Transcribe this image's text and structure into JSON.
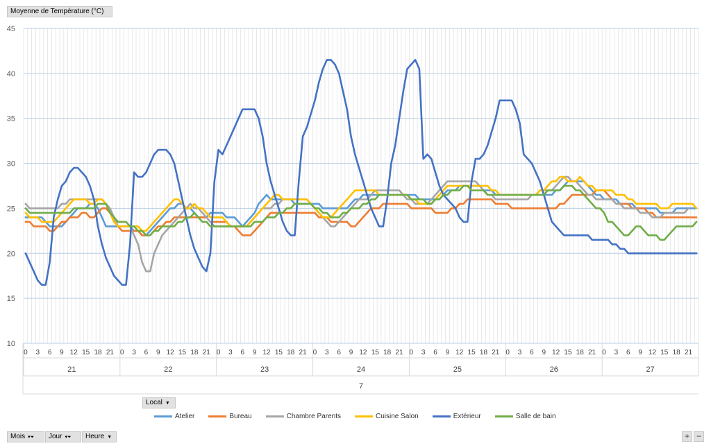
{
  "value_field_label": "Moyenne de Température (°C)",
  "legend_field_label": "Local",
  "axis_fields": [
    {
      "label": "Mois",
      "has_filter": true
    },
    {
      "label": "Jour",
      "has_filter": true
    },
    {
      "label": "Heure",
      "has_filter": false
    }
  ],
  "zoom": {
    "plus": "+",
    "minus": "−"
  },
  "icons": {
    "dropdown": "chevron-down-icon",
    "filter": "funnel-icon"
  },
  "chart_data": {
    "type": "line",
    "title": "",
    "xlabel": "",
    "ylabel": "",
    "ylim": [
      10,
      45
    ],
    "yticks": [
      10,
      15,
      20,
      25,
      30,
      35,
      40,
      45
    ],
    "grid": true,
    "legend_position": "bottom",
    "month": "7",
    "days": [
      "21",
      "22",
      "23",
      "24",
      "25",
      "26",
      "27"
    ],
    "hour_tick_labels": [
      "0",
      "3",
      "6",
      "9",
      "12",
      "15",
      "18",
      "21"
    ],
    "hours_per_day": 24,
    "series": [
      {
        "name": "Atelier",
        "color": "#5b9bd5",
        "values": [
          24,
          24,
          24,
          24,
          24,
          23.5,
          23,
          23,
          23,
          23,
          23.5,
          24,
          24.5,
          25,
          25,
          25,
          25.5,
          25.5,
          25,
          24,
          23,
          23,
          23,
          23,
          23,
          23,
          23,
          22.5,
          22.5,
          22,
          22,
          22.5,
          23,
          23.5,
          24,
          24.5,
          25,
          25,
          25.5,
          25.5,
          25,
          25,
          24.5,
          24,
          24,
          24,
          24.5,
          24.5,
          24.5,
          24.5,
          24,
          24,
          24,
          23.5,
          23,
          23.5,
          24,
          24.5,
          25.5,
          26,
          26.5,
          26,
          26,
          26,
          26,
          26,
          26,
          25.5,
          25.5,
          25.5,
          25.5,
          25.5,
          25.5,
          25.5,
          25,
          25,
          25,
          25,
          25,
          25,
          25,
          25.5,
          26,
          26,
          26.5,
          26.5,
          26.5,
          26.5,
          26.5,
          26.5,
          26.5,
          26.5,
          26.5,
          26.5,
          26.5,
          26.5,
          26.5,
          26.5,
          26,
          26,
          26,
          26,
          26,
          26,
          26.5,
          27,
          27,
          27,
          27.5,
          27.5,
          27.5,
          27.5,
          27.5,
          27.5,
          27,
          27,
          27,
          26.5,
          26.5,
          26.5,
          26.5,
          26.5,
          26.5,
          26.5,
          26.5,
          26.5,
          26.5,
          26.5,
          26.5,
          26.5,
          26.5,
          26.5,
          27,
          27,
          27.5,
          28,
          28,
          28,
          28,
          28,
          27.5,
          27,
          26.5,
          26.5,
          26,
          26,
          26,
          26,
          25.5,
          25.5,
          25.5,
          25.5,
          25,
          25,
          25,
          25,
          25,
          25,
          24.5,
          24.5,
          24.5,
          24.5,
          25,
          25,
          25,
          25,
          25,
          25
        ]
      },
      {
        "name": "Bureau",
        "color": "#ed7d31",
        "values": [
          23.5,
          23.5,
          23,
          23,
          23,
          23,
          22.5,
          22.5,
          23,
          23.5,
          23.5,
          24,
          24,
          24,
          24.5,
          24.5,
          24,
          24,
          24.5,
          25,
          25,
          24.5,
          24,
          23,
          22.5,
          22.5,
          22.5,
          22.5,
          22.5,
          22,
          22,
          22,
          22.5,
          23,
          23,
          23.5,
          23.5,
          24,
          24,
          24,
          24,
          24,
          24,
          24,
          24,
          24,
          23.5,
          23.5,
          23.5,
          23.5,
          23.5,
          23,
          23,
          22.5,
          22,
          22,
          22,
          22.5,
          23,
          23.5,
          24,
          24.5,
          24.5,
          24.5,
          24.5,
          24.5,
          24.5,
          24.5,
          24.5,
          24.5,
          24.5,
          24.5,
          24.5,
          24,
          24,
          24,
          23.5,
          23.5,
          23.5,
          23.5,
          23.5,
          23,
          23,
          23.5,
          24,
          24.5,
          25,
          25,
          25,
          25.5,
          25.5,
          25.5,
          25.5,
          25.5,
          25.5,
          25.5,
          25,
          25,
          25,
          25,
          25,
          25,
          24.5,
          24.5,
          24.5,
          24.5,
          25,
          25,
          25.5,
          25.5,
          26,
          26,
          26,
          26,
          26,
          26,
          26,
          25.5,
          25.5,
          25.5,
          25.5,
          25,
          25,
          25,
          25,
          25,
          25,
          25,
          25,
          25,
          25,
          25,
          25,
          25.5,
          25.5,
          26,
          26.5,
          26.5,
          26.5,
          26.5,
          26.5,
          26.5,
          27,
          27,
          27,
          26.5,
          26,
          25.5,
          25.5,
          25.5,
          25.5,
          25,
          25,
          25,
          25,
          24.5,
          24.5,
          24,
          24,
          24,
          24,
          24,
          24,
          24,
          24,
          24,
          24,
          24
        ]
      },
      {
        "name": "Chambre Parents",
        "color": "#a5a5a5",
        "values": [
          25.5,
          25,
          25,
          25,
          25,
          25,
          25,
          25,
          25,
          25.5,
          25.5,
          26,
          26,
          26,
          26,
          26,
          26,
          26,
          26,
          26,
          25.5,
          25,
          24,
          23,
          23,
          23,
          23,
          22,
          21,
          19,
          18,
          18,
          20,
          21,
          22,
          22.5,
          23,
          23.5,
          24,
          24.5,
          25,
          25.5,
          25,
          25,
          24.5,
          24,
          23.5,
          23,
          23,
          23,
          23,
          23,
          23,
          23,
          23,
          23,
          23.5,
          24,
          24.5,
          25,
          25,
          25,
          25.5,
          25.5,
          26,
          26,
          26,
          26,
          26,
          26,
          26,
          25.5,
          25,
          24.5,
          24,
          23.5,
          23,
          23,
          23.5,
          24,
          24.5,
          25,
          25.5,
          26,
          26,
          26,
          26.5,
          27,
          27,
          27,
          27,
          27,
          27,
          27,
          26.5,
          26,
          26,
          25.5,
          25.5,
          25.5,
          25.5,
          26,
          26.5,
          27,
          27.5,
          28,
          28,
          28,
          28,
          28,
          28,
          28,
          28,
          27.5,
          27,
          26.5,
          26.5,
          26,
          26,
          26,
          26,
          26,
          26,
          26,
          26,
          26,
          26.5,
          26.5,
          27,
          27,
          27,
          27,
          27.5,
          28,
          28.5,
          28.5,
          28,
          28,
          27.5,
          27,
          26.5,
          26.5,
          26,
          26,
          26,
          26,
          26,
          25.5,
          25.5,
          25,
          25,
          25,
          25,
          24.5,
          24.5,
          24.5,
          24,
          24,
          24,
          24.5,
          24.5,
          24.5,
          24.5,
          24.5,
          24.5,
          25
        ]
      },
      {
        "name": "Cuisine Salon",
        "color": "#ffc000",
        "values": [
          24.5,
          24,
          24,
          24,
          23.5,
          23.5,
          23.5,
          23.5,
          24,
          24.5,
          25,
          25.5,
          26,
          26,
          26,
          26,
          25.5,
          25.5,
          26,
          26,
          25.5,
          24.5,
          23.5,
          23,
          23,
          23,
          23,
          23,
          23,
          22.5,
          22.5,
          23,
          23.5,
          24,
          24.5,
          25,
          25.5,
          26,
          26,
          25.5,
          25,
          25,
          25.5,
          25,
          25,
          24.5,
          24,
          24,
          24,
          24,
          23.5,
          23,
          23,
          23,
          23,
          23,
          23.5,
          24,
          24.5,
          25,
          25.5,
          26,
          26.5,
          26.5,
          26,
          26,
          26,
          26,
          26,
          26,
          26,
          25.5,
          25,
          24.5,
          24,
          24,
          24,
          24.5,
          25,
          25.5,
          26,
          26.5,
          27,
          27,
          27,
          27,
          27,
          27,
          26.5,
          26.5,
          26.5,
          26.5,
          26.5,
          26.5,
          26.5,
          26.5,
          26,
          26,
          25.5,
          25.5,
          25.5,
          25.5,
          26,
          26.5,
          27,
          27.5,
          27.5,
          27.5,
          27.5,
          27.5,
          27.5,
          27.5,
          27.5,
          27.5,
          27.5,
          27.5,
          27,
          27,
          26.5,
          26.5,
          26.5,
          26.5,
          26.5,
          26.5,
          26.5,
          26.5,
          26.5,
          26.5,
          27,
          27,
          27.5,
          28,
          28,
          28.5,
          28.5,
          28,
          28,
          28,
          28.5,
          28,
          27.5,
          27.5,
          27,
          27,
          27,
          27,
          27,
          26.5,
          26.5,
          26.5,
          26,
          26,
          25.5,
          25.5,
          25.5,
          25.5,
          25.5,
          25.5,
          25,
          25,
          25,
          25.5,
          25.5,
          25.5,
          25.5,
          25.5,
          25.5,
          25
        ]
      },
      {
        "name": "Extérieur",
        "color": "#4472c4",
        "values": [
          20,
          19,
          18,
          17,
          16.5,
          16.5,
          19,
          24,
          26,
          27.5,
          28,
          29,
          29.5,
          29.5,
          29,
          28.5,
          27.5,
          26,
          23,
          21,
          19.5,
          18.5,
          17.5,
          17,
          16.5,
          16.5,
          21,
          29,
          28.5,
          28.5,
          29,
          30,
          31,
          31.5,
          31.5,
          31.5,
          31,
          30,
          28,
          26,
          24,
          22,
          20.5,
          19.5,
          18.5,
          18,
          20,
          28,
          31.5,
          31,
          32,
          33,
          34,
          35,
          36,
          36,
          36,
          36,
          35,
          33,
          30,
          28,
          26.5,
          25,
          23.5,
          22.5,
          22,
          22,
          28,
          33,
          34,
          35.5,
          37,
          39,
          40.5,
          41.5,
          41.5,
          41,
          40,
          38,
          36,
          33,
          31,
          29.5,
          28,
          26.5,
          25,
          24,
          23,
          23,
          26,
          30,
          32,
          35,
          38,
          40.5,
          41,
          41.5,
          40.5,
          30.5,
          31,
          30.5,
          29,
          27.5,
          26.5,
          26,
          25.5,
          25,
          24,
          23.5,
          23.5,
          28,
          30.5,
          30.5,
          31,
          32,
          33.5,
          35,
          37,
          37,
          37,
          37,
          36,
          34.5,
          31,
          30.5,
          30,
          29,
          28,
          26.5,
          25,
          23.5,
          23,
          22.5,
          22,
          22,
          22,
          22,
          22,
          22,
          22,
          21.5,
          21.5,
          21.5,
          21.5,
          21.5,
          21,
          21,
          20.5,
          20.5,
          20,
          20,
          20,
          20,
          20,
          20,
          20,
          20,
          20,
          20,
          20,
          20,
          20,
          20,
          20,
          20,
          20,
          20
        ]
      },
      {
        "name": "Salle de bain",
        "color": "#70ad47",
        "values": [
          25,
          24.5,
          24.5,
          24.5,
          24.5,
          24.5,
          24.5,
          24.5,
          24.5,
          24.5,
          24.5,
          24.5,
          25,
          25,
          25,
          25,
          25,
          25,
          25.5,
          25.5,
          25.5,
          24.5,
          24,
          23.5,
          23.5,
          23.5,
          23,
          23,
          22.5,
          22.5,
          22,
          22,
          22.5,
          22.5,
          23,
          23,
          23,
          23,
          23.5,
          23.5,
          24,
          24,
          24.5,
          24,
          23.5,
          23.5,
          23,
          23,
          23,
          23,
          23,
          23,
          23,
          23,
          23,
          23,
          23,
          23.5,
          23.5,
          23.5,
          24,
          24,
          24,
          24.5,
          24.5,
          25,
          25,
          25.5,
          25.5,
          25.5,
          25.5,
          25.5,
          25,
          25,
          24.5,
          24.5,
          24,
          24,
          24,
          24.5,
          24.5,
          25,
          25,
          25,
          25.5,
          25.5,
          26,
          26,
          26.5,
          26.5,
          26.5,
          26.5,
          26.5,
          26.5,
          26.5,
          26.5,
          26,
          26,
          26,
          26,
          25.5,
          25.5,
          26,
          26,
          26.5,
          26.5,
          27,
          27,
          27,
          27.5,
          27.5,
          27,
          27,
          27,
          27,
          26.5,
          26.5,
          26.5,
          26.5,
          26.5,
          26.5,
          26.5,
          26.5,
          26.5,
          26.5,
          26.5,
          26.5,
          26.5,
          26.5,
          26.5,
          27,
          27,
          27,
          27,
          27.5,
          27.5,
          27.5,
          27,
          27,
          26.5,
          26,
          25.5,
          25,
          25,
          24.5,
          23.5,
          23.5,
          23,
          22.5,
          22,
          22,
          22.5,
          23,
          23,
          22.5,
          22,
          22,
          22,
          21.5,
          21.5,
          22,
          22.5,
          23,
          23,
          23,
          23,
          23,
          23.5
        ]
      }
    ]
  }
}
